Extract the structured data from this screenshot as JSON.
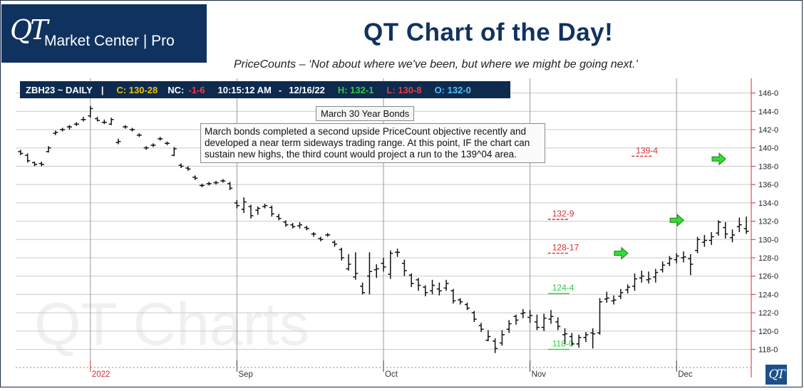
{
  "logo": {
    "mark": "QT",
    "text": "Market Center | Pro"
  },
  "header": {
    "title": "QT Chart of the Day!",
    "subtitle": "PriceCounts – ‘Not about where we've been, but where we might be going next.’"
  },
  "status_bar": {
    "symbol": "ZBH23 ~ DAILY",
    "sep": "|",
    "close": "C: 130-28",
    "net_change_label": "NC:",
    "net_change": "-1-6",
    "time": "10:15:12 AM",
    "dash": "-",
    "date": "12/16/22",
    "high": "H: 132-1",
    "low": "L: 130-8",
    "open": "O: 132-0",
    "colors": {
      "close": "#f2c200",
      "net_change": "#ff3b3b",
      "high": "#2ecc40",
      "low": "#e04040",
      "open": "#4fc3f7"
    }
  },
  "annotation": {
    "title": "March 30 Year Bonds",
    "text": "March bonds completed a second upside PriceCount objective recently and developed a near term sideways trading range.  At this point, IF the chart can sustain new highs, the third count would project a run to the 139^04 area."
  },
  "watermark": "QT Charts",
  "corner_logo": "QT",
  "chart_data": {
    "type": "ohlc-bar",
    "y_axis_ticks": [
      "146-0",
      "144-0",
      "142-0",
      "140-0",
      "138-0",
      "136-0",
      "134-0",
      "132-0",
      "130-0",
      "128-0",
      "126-0",
      "124-0",
      "122-0",
      "120-0",
      "118-0"
    ],
    "ylim": [
      116.8,
      147.6
    ],
    "x_axis_labels": [
      {
        "label": "2022",
        "index": 10,
        "color": "#d32f2f"
      },
      {
        "label": "Sep",
        "index": 31,
        "color": "#333333"
      },
      {
        "label": "Oct",
        "index": 52,
        "color": "#333333"
      },
      {
        "label": "Nov",
        "index": 73,
        "color": "#333333"
      },
      {
        "label": "Dec",
        "index": 94,
        "color": "#333333"
      }
    ],
    "bar_count": 105,
    "pricecount_targets": [
      {
        "label": "139-4",
        "value": 139.1,
        "color": "#d32f2f",
        "marker_bar": 89
      },
      {
        "label": "132-9",
        "value": 132.2,
        "color": "#d32f2f",
        "marker_bar": 77
      },
      {
        "label": "128-17",
        "value": 128.5,
        "color": "#d32f2f",
        "marker_bar": 77
      },
      {
        "label": "124-4",
        "value": 124.1,
        "color": "#2ecc40",
        "marker_bar": 77
      },
      {
        "label": "118-0",
        "value": 118.0,
        "color": "#2ecc40",
        "marker_bar": 77
      }
    ],
    "arrows": [
      {
        "bar": 105,
        "value": 138.8,
        "color": "#33dd33"
      },
      {
        "bar": 94,
        "value": 132.1,
        "color": "#33dd33"
      },
      {
        "bar": 86,
        "value": 128.5,
        "color": "#33dd33"
      }
    ],
    "ohlc": [
      [
        139.6,
        139.8,
        139.2,
        139.4
      ],
      [
        139.2,
        139.4,
        138.4,
        138.6
      ],
      [
        138.4,
        138.5,
        138.0,
        138.2
      ],
      [
        138.3,
        138.5,
        138.0,
        138.2
      ],
      [
        139.6,
        140.2,
        139.5,
        140.0
      ],
      [
        141.6,
        141.9,
        141.4,
        141.7
      ],
      [
        142.0,
        142.2,
        141.8,
        142.0
      ],
      [
        142.3,
        142.5,
        142.0,
        142.3
      ],
      [
        142.6,
        142.8,
        142.4,
        142.6
      ],
      [
        143.1,
        143.4,
        142.9,
        143.1
      ],
      [
        143.5,
        144.6,
        143.3,
        144.3
      ],
      [
        143.2,
        143.4,
        142.9,
        143.0
      ],
      [
        142.8,
        143.1,
        142.6,
        142.8
      ],
      [
        142.6,
        143.3,
        142.5,
        143.1
      ],
      [
        140.6,
        141.0,
        140.4,
        140.7
      ],
      [
        142.3,
        142.5,
        142.1,
        142.3
      ],
      [
        142.0,
        142.2,
        141.8,
        142.0
      ],
      [
        141.4,
        141.6,
        141.2,
        141.4
      ],
      [
        140.0,
        140.2,
        139.8,
        140.0
      ],
      [
        140.3,
        140.5,
        140.1,
        140.3
      ],
      [
        141.0,
        141.2,
        140.8,
        141.0
      ],
      [
        140.5,
        140.7,
        140.3,
        140.5
      ],
      [
        139.2,
        140.1,
        139.1,
        139.9
      ],
      [
        138.1,
        138.3,
        137.8,
        138.0
      ],
      [
        137.8,
        138.0,
        137.5,
        137.7
      ],
      [
        136.8,
        137.0,
        136.5,
        136.7
      ],
      [
        135.9,
        136.1,
        135.7,
        135.9
      ],
      [
        136.1,
        136.3,
        135.9,
        136.1
      ],
      [
        136.2,
        136.4,
        136.0,
        136.2
      ],
      [
        136.4,
        136.6,
        136.2,
        136.4
      ],
      [
        136.1,
        136.3,
        135.4,
        135.6
      ],
      [
        134.0,
        134.3,
        133.4,
        133.7
      ],
      [
        133.3,
        134.6,
        132.9,
        134.1
      ],
      [
        133.6,
        133.8,
        132.3,
        132.6
      ],
      [
        133.2,
        133.6,
        132.7,
        133.4
      ],
      [
        133.6,
        133.9,
        133.4,
        133.7
      ],
      [
        133.5,
        133.7,
        132.5,
        132.8
      ],
      [
        132.5,
        132.8,
        132.1,
        132.3
      ],
      [
        131.9,
        132.1,
        131.4,
        131.6
      ],
      [
        131.6,
        131.8,
        131.2,
        131.4
      ],
      [
        131.5,
        131.9,
        131.2,
        131.6
      ],
      [
        131.3,
        131.5,
        131.0,
        131.2
      ],
      [
        130.6,
        130.8,
        130.3,
        130.6
      ],
      [
        130.1,
        130.3,
        129.8,
        130.0
      ],
      [
        130.5,
        130.7,
        130.3,
        130.5
      ],
      [
        129.7,
        129.9,
        129.2,
        129.5
      ],
      [
        128.9,
        129.1,
        127.7,
        128.0
      ],
      [
        126.8,
        128.4,
        126.6,
        127.3
      ],
      [
        125.9,
        128.6,
        125.6,
        126.3
      ],
      [
        124.9,
        125.3,
        124.0,
        124.2
      ],
      [
        126.0,
        128.6,
        124.0,
        126.5
      ],
      [
        126.7,
        127.3,
        125.8,
        126.8
      ],
      [
        127.4,
        128.0,
        126.5,
        127.0
      ],
      [
        126.2,
        128.8,
        125.7,
        128.5
      ],
      [
        128.6,
        129.0,
        128.1,
        128.6
      ],
      [
        127.4,
        127.8,
        126.0,
        126.6
      ],
      [
        126.1,
        126.3,
        124.8,
        125.2
      ],
      [
        125.6,
        125.8,
        124.4,
        125.0
      ],
      [
        124.8,
        125.0,
        123.8,
        124.2
      ],
      [
        124.4,
        125.6,
        124.0,
        125.0
      ],
      [
        124.6,
        125.3,
        123.9,
        124.4
      ],
      [
        124.7,
        125.6,
        124.4,
        125.2
      ],
      [
        124.4,
        124.6,
        123.0,
        123.3
      ],
      [
        123.4,
        123.6,
        122.9,
        123.2
      ],
      [
        122.9,
        123.1,
        122.3,
        122.5
      ],
      [
        122.0,
        122.2,
        121.0,
        121.3
      ],
      [
        120.6,
        120.9,
        119.9,
        120.2
      ],
      [
        119.0,
        120.1,
        118.9,
        119.4
      ],
      [
        118.9,
        119.2,
        117.6,
        118.1
      ],
      [
        118.7,
        120.1,
        118.4,
        119.6
      ],
      [
        120.2,
        121.2,
        119.8,
        120.8
      ],
      [
        121.6,
        121.8,
        120.7,
        121.2
      ],
      [
        121.9,
        122.4,
        121.4,
        122.0
      ],
      [
        121.5,
        122.3,
        120.9,
        121.7
      ],
      [
        121.0,
        121.8,
        120.1,
        120.4
      ],
      [
        120.4,
        121.9,
        120.0,
        121.4
      ],
      [
        121.3,
        122.3,
        120.8,
        121.6
      ],
      [
        121.0,
        121.5,
        120.1,
        120.5
      ],
      [
        119.6,
        120.3,
        118.6,
        119.7
      ],
      [
        119.4,
        119.8,
        118.4,
        118.6
      ],
      [
        118.6,
        119.6,
        118.2,
        119.3
      ],
      [
        119.3,
        119.9,
        118.8,
        119.6
      ],
      [
        119.8,
        120.3,
        118.1,
        119.7
      ],
      [
        119.8,
        123.6,
        119.6,
        123.2
      ],
      [
        123.5,
        124.3,
        123.1,
        123.6
      ],
      [
        123.3,
        123.9,
        122.9,
        123.4
      ],
      [
        123.8,
        124.6,
        123.5,
        124.2
      ],
      [
        124.5,
        125.1,
        124.1,
        124.8
      ],
      [
        124.9,
        126.3,
        124.4,
        125.7
      ],
      [
        125.8,
        126.6,
        125.3,
        126.0
      ],
      [
        125.6,
        126.5,
        125.2,
        125.7
      ],
      [
        125.9,
        126.8,
        125.3,
        126.4
      ],
      [
        126.7,
        127.6,
        126.4,
        127.2
      ],
      [
        127.4,
        128.2,
        127.1,
        127.9
      ],
      [
        127.8,
        128.5,
        127.4,
        128.2
      ],
      [
        128.0,
        128.7,
        127.5,
        128.1
      ],
      [
        127.9,
        128.4,
        126.1,
        127.3
      ],
      [
        128.8,
        130.3,
        128.5,
        130.0
      ],
      [
        129.7,
        130.5,
        129.2,
        129.9
      ],
      [
        129.9,
        130.8,
        129.4,
        130.3
      ],
      [
        130.7,
        132.1,
        130.4,
        131.9
      ],
      [
        131.3,
        131.9,
        130.1,
        130.6
      ],
      [
        130.2,
        131.1,
        129.7,
        130.5
      ],
      [
        131.4,
        132.4,
        130.8,
        131.6
      ],
      [
        131.2,
        132.5,
        130.6,
        130.9
      ]
    ]
  }
}
